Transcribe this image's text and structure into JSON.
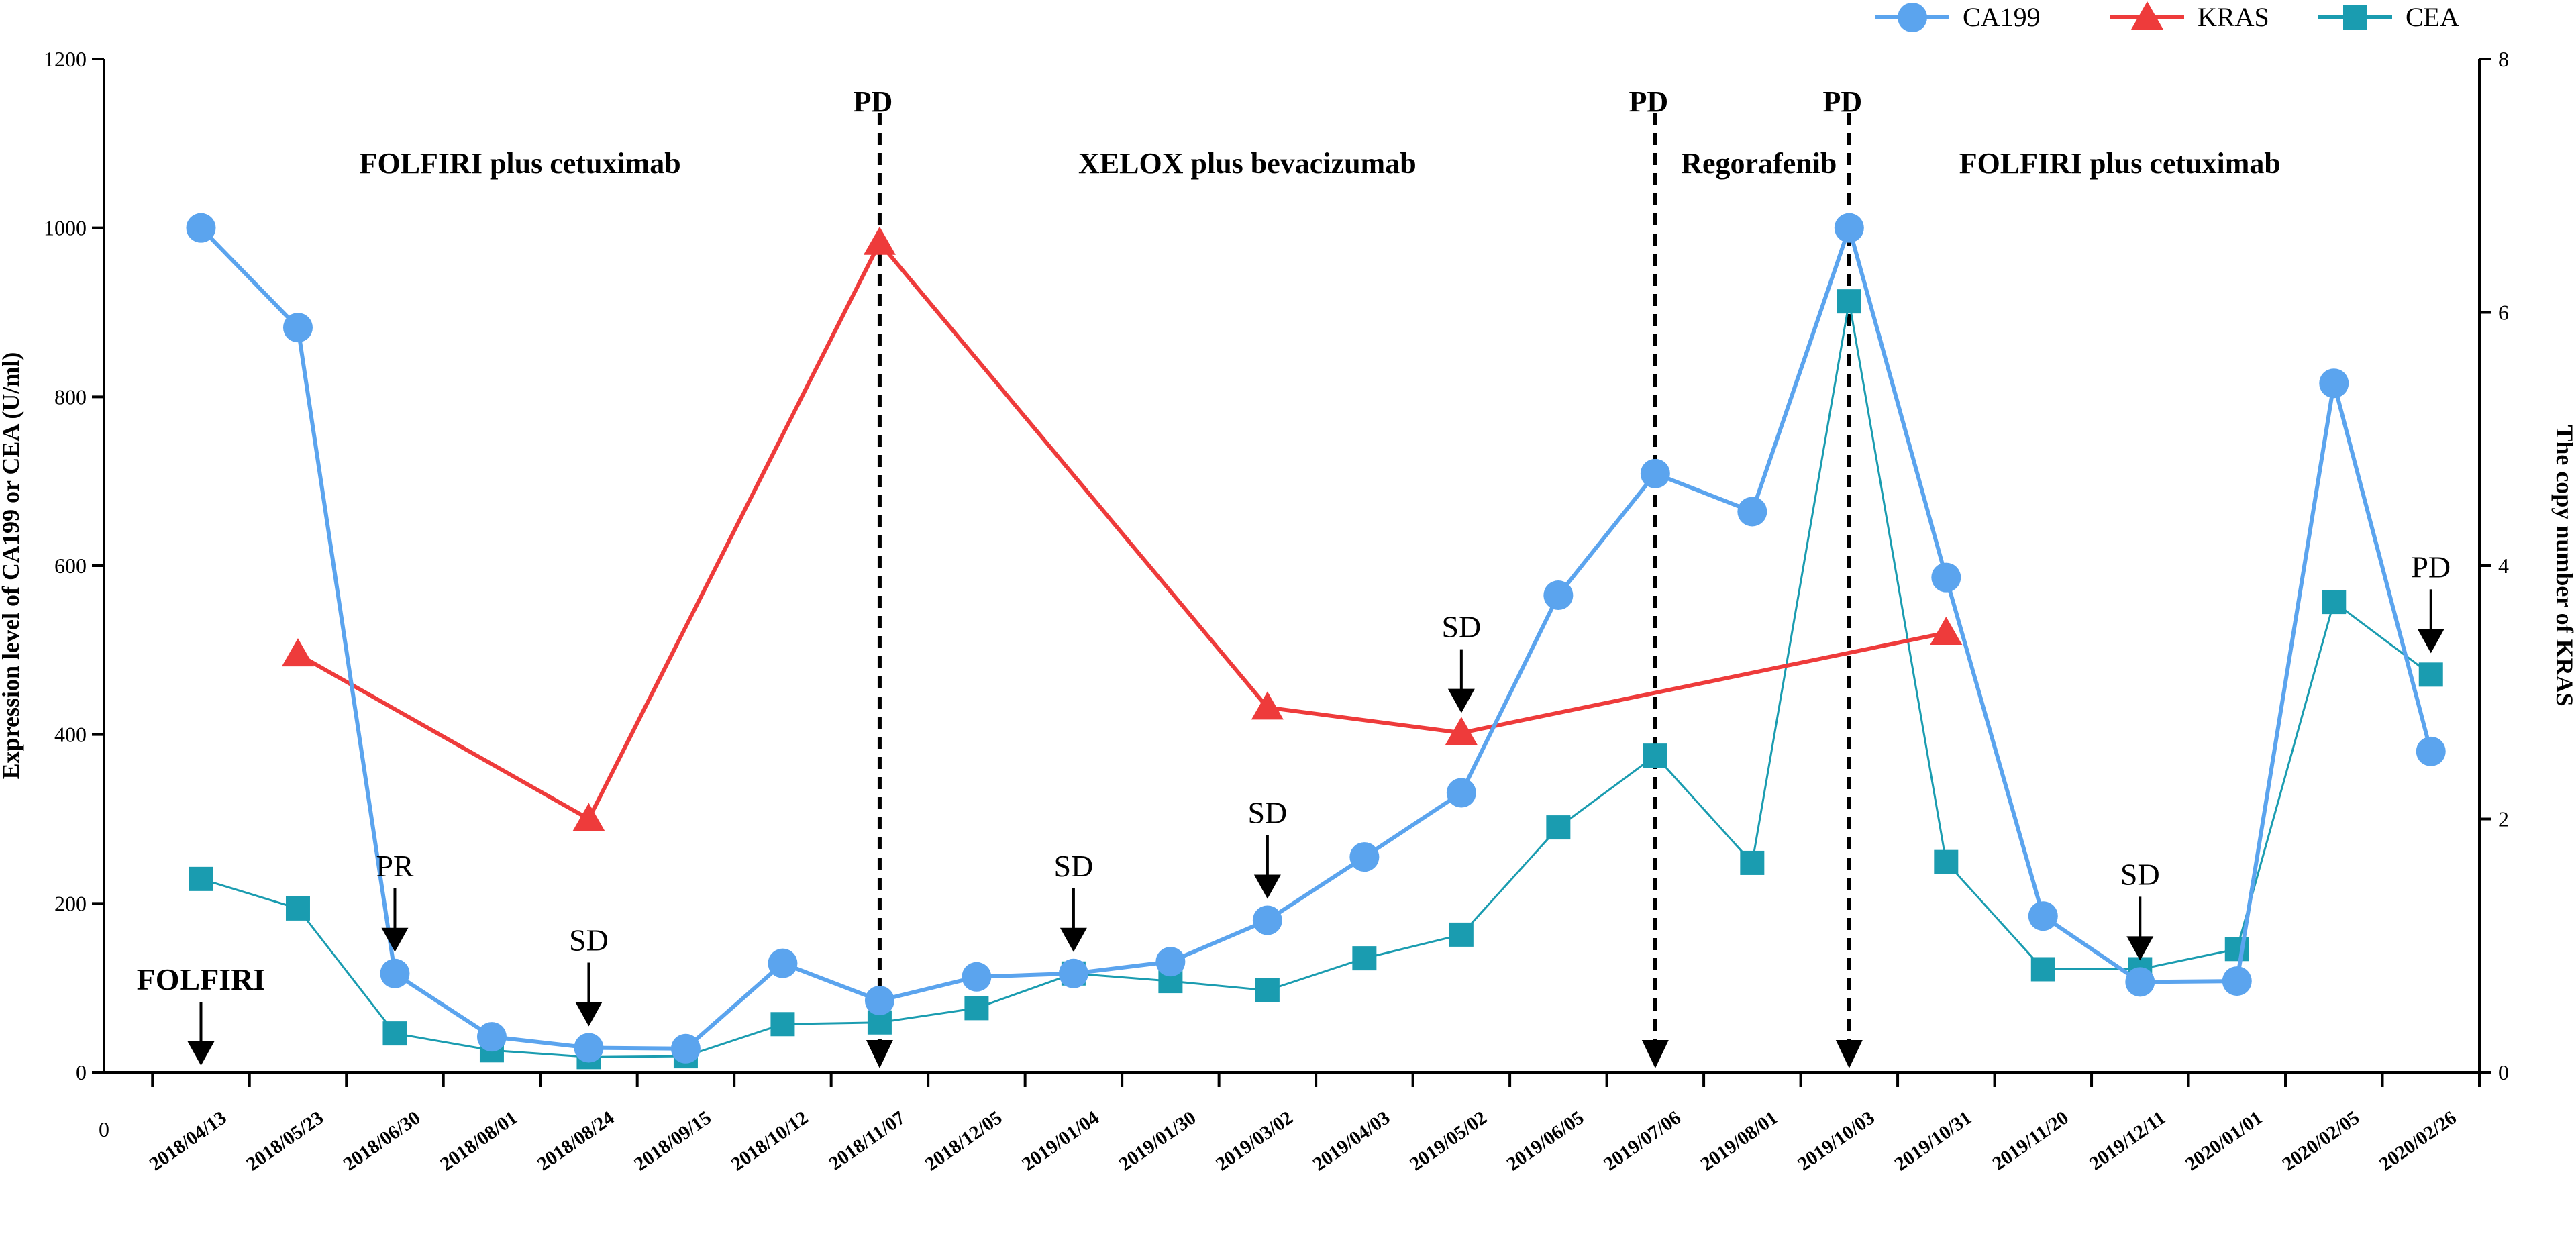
{
  "chart_data": {
    "type": "line",
    "categories": [
      "2018/04/13",
      "2018/05/23",
      "2018/06/30",
      "2018/08/01",
      "2018/08/24",
      "2018/09/15",
      "2018/10/12",
      "2018/11/07",
      "2018/12/05",
      "2019/01/04",
      "2019/01/30",
      "2019/03/02",
      "2019/04/03",
      "2019/05/02",
      "2019/06/05",
      "2019/07/06",
      "2019/08/01",
      "2019/10/03",
      "2019/10/31",
      "2019/11/20",
      "2019/12/11",
      "2020/01/01",
      "2020/02/05",
      "2020/02/26"
    ],
    "x_origin_label": "0",
    "series": [
      {
        "name": "CA199",
        "axis": "left",
        "color": "#5BA4EE",
        "marker": "circle",
        "points": [
          [
            0,
            1000
          ],
          [
            1,
            882
          ],
          [
            2,
            117
          ],
          [
            3,
            42
          ],
          [
            4,
            29
          ],
          [
            5,
            28
          ],
          [
            6,
            129
          ],
          [
            7,
            85
          ],
          [
            8,
            113
          ],
          [
            9,
            117
          ],
          [
            10,
            131
          ],
          [
            11,
            180
          ],
          [
            12,
            255
          ],
          [
            13,
            331
          ],
          [
            14,
            565
          ],
          [
            15,
            709
          ],
          [
            16,
            664
          ],
          [
            17,
            1000
          ],
          [
            18,
            586
          ],
          [
            19,
            185
          ],
          [
            20,
            107
          ],
          [
            21,
            108
          ],
          [
            22,
            816
          ],
          [
            23,
            380
          ]
        ]
      },
      {
        "name": "KRAS",
        "axis": "right",
        "color": "#EE3B3B",
        "marker": "triangle",
        "points": [
          [
            1,
            3.3
          ],
          [
            4,
            2.0
          ],
          [
            7,
            6.55
          ],
          [
            11,
            2.88
          ],
          [
            13,
            2.68
          ],
          [
            18,
            3.47
          ]
        ]
      },
      {
        "name": "CEA",
        "axis": "right_scaled_left",
        "color": "#1A9CB0",
        "marker": "square",
        "points": [
          [
            0,
            229
          ],
          [
            1,
            194
          ],
          [
            2,
            46
          ],
          [
            3,
            26
          ],
          [
            4,
            18
          ],
          [
            5,
            19
          ],
          [
            6,
            57
          ],
          [
            7,
            59
          ],
          [
            8,
            76
          ],
          [
            9,
            117
          ],
          [
            10,
            108
          ],
          [
            11,
            97
          ],
          [
            12,
            135
          ],
          [
            13,
            163
          ],
          [
            14,
            290
          ],
          [
            15,
            375
          ],
          [
            16,
            248
          ],
          [
            17,
            913
          ],
          [
            18,
            249
          ],
          [
            19,
            122
          ],
          [
            20,
            122
          ],
          [
            21,
            146
          ],
          [
            22,
            557
          ],
          [
            23,
            471
          ]
        ]
      }
    ],
    "y_left": {
      "label": "Expression level of CA199 or CEA (U/ml)",
      "min": 0,
      "max": 1200,
      "ticks": [
        0,
        200,
        400,
        600,
        800,
        1000,
        1200
      ]
    },
    "y_right": {
      "label": "The copy number of KRAS",
      "min": 0,
      "max": 8,
      "ticks": [
        0,
        2,
        4,
        6,
        8
      ]
    },
    "legend": {
      "position": "top-right",
      "items": [
        "CA199",
        "KRAS",
        "CEA"
      ]
    },
    "phases": [
      {
        "label": "FOLFIRI plus cetuximab",
        "from": 0,
        "to": 7
      },
      {
        "label": "XELOX plus bevacizumab",
        "from": 7,
        "to": 15
      },
      {
        "label": "Regorafenib",
        "from": 15,
        "to": 17
      },
      {
        "label": "FOLFIRI plus cetuximab",
        "from": 17,
        "to": 23
      }
    ],
    "pd_lines": [
      {
        "label": "PD",
        "x": 7
      },
      {
        "label": "PD",
        "x": 15
      },
      {
        "label": "PD",
        "x": 17
      }
    ],
    "annotations": [
      {
        "label": "FOLFIRI",
        "x": 0.5,
        "value": 0,
        "bold": true
      },
      {
        "label": "PR",
        "x": 2.5,
        "value": 117,
        "bold": false
      },
      {
        "label": "SD",
        "x": 4.5,
        "value": 29,
        "bold": false
      },
      {
        "label": "SD",
        "x": 9.5,
        "value": 117,
        "bold": false
      },
      {
        "label": "SD",
        "x": 11.5,
        "value": 180,
        "bold": false
      },
      {
        "label": "SD",
        "x": 13.5,
        "value": 400,
        "bold": false
      },
      {
        "label": "SD",
        "x": 20.5,
        "value": 107,
        "bold": false
      },
      {
        "label": "PD",
        "x": 23.5,
        "value": 471,
        "bold": false
      }
    ]
  }
}
